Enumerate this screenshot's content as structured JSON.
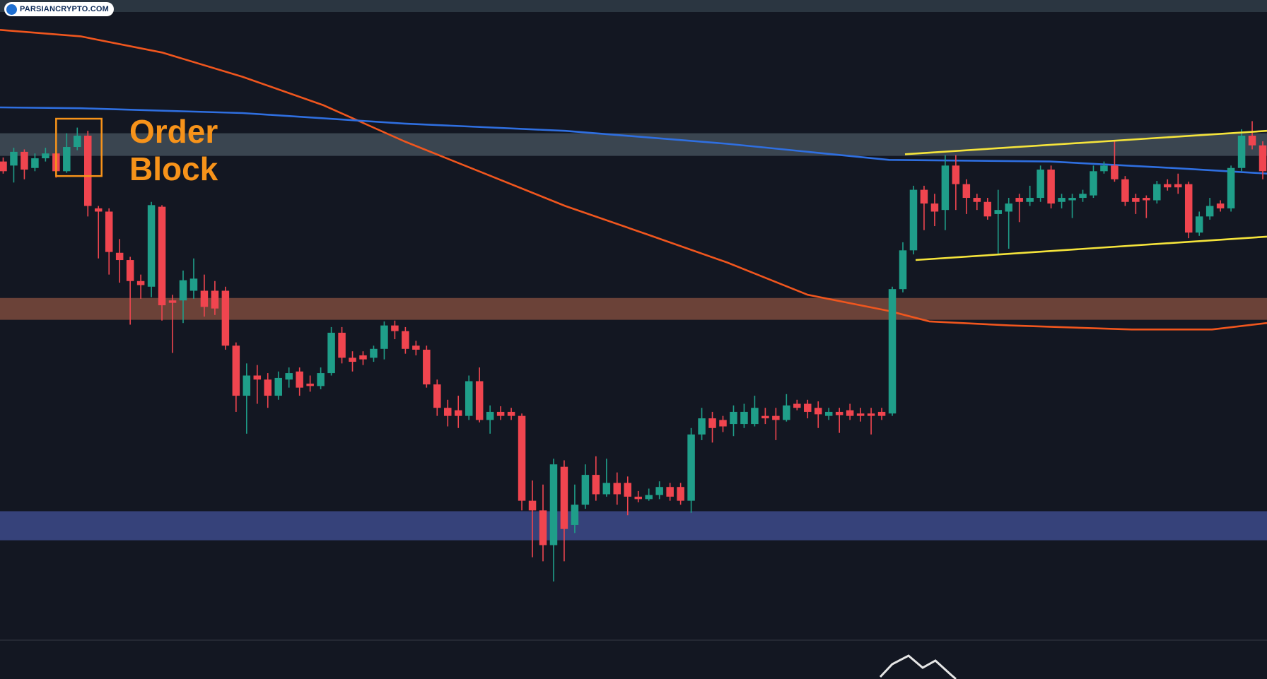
{
  "watermark": "PARSIANCRYPTO.COM",
  "chart_data": {
    "type": "candlestick",
    "annotation": "Order Block",
    "categories": [
      null,
      null,
      null,
      null,
      null,
      null,
      null,
      null,
      null,
      null,
      null,
      null,
      null,
      null,
      null,
      null,
      null,
      null,
      null,
      null,
      null,
      null,
      null,
      null,
      null,
      null,
      null,
      null,
      null,
      null,
      null,
      null,
      null,
      null,
      null,
      null,
      null,
      null,
      null,
      null,
      null,
      null,
      null,
      null,
      null,
      null,
      null,
      null,
      null,
      null,
      null,
      null,
      null,
      null,
      null,
      null,
      null,
      null,
      null,
      null,
      null,
      null,
      null,
      null,
      null,
      null,
      null,
      null,
      null,
      null,
      null,
      null,
      null,
      null,
      null,
      null,
      null,
      null,
      null,
      null,
      null,
      null,
      null,
      null,
      null,
      null,
      null,
      null,
      null,
      null,
      null,
      null,
      null,
      null,
      null,
      null,
      null,
      null,
      null,
      null,
      null,
      null,
      null,
      null,
      null,
      null,
      null,
      null,
      null,
      null,
      null,
      null,
      null,
      null,
      null,
      null,
      null,
      null,
      null,
      null
    ],
    "open": [
      600,
      595,
      612,
      592,
      604,
      610,
      588,
      618,
      632,
      542,
      538,
      487,
      478,
      452,
      445,
      544,
      428,
      428,
      440,
      440,
      440,
      440,
      372,
      310,
      335,
      330,
      310,
      330,
      340,
      325,
      322,
      338,
      388,
      357,
      360,
      357,
      368,
      397,
      390,
      372,
      367,
      324,
      295,
      292,
      285,
      328,
      280,
      290,
      290,
      285,
      180,
      168,
      125,
      222,
      150,
      175,
      212,
      188,
      202,
      202,
      185,
      182,
      187,
      197,
      197,
      180,
      262,
      282,
      280,
      275,
      275,
      275,
      285,
      285,
      280,
      300,
      300,
      295,
      285,
      290,
      292,
      288,
      288,
      290,
      288,
      442,
      490,
      565,
      548,
      540,
      595,
      572,
      555,
      550,
      535,
      538,
      555,
      550,
      555,
      590,
      550,
      552,
      555,
      558,
      588,
      595,
      578,
      555,
      555,
      552,
      572,
      572,
      572,
      512,
      532,
      548,
      542,
      592,
      632,
      620
    ],
    "high": [
      605,
      617,
      615,
      610,
      617,
      617,
      635,
      642,
      638,
      545,
      542,
      504,
      482,
      460,
      550,
      546,
      435,
      465,
      480,
      460,
      452,
      445,
      376,
      350,
      348,
      338,
      340,
      345,
      345,
      335,
      345,
      395,
      395,
      365,
      365,
      372,
      402,
      403,
      395,
      378,
      372,
      330,
      305,
      310,
      335,
      345,
      298,
      297,
      295,
      288,
      205,
      200,
      232,
      230,
      200,
      225,
      235,
      232,
      215,
      210,
      192,
      195,
      204,
      202,
      202,
      270,
      295,
      290,
      285,
      298,
      300,
      310,
      295,
      295,
      312,
      305,
      305,
      303,
      295,
      295,
      300,
      295,
      295,
      295,
      445,
      500,
      570,
      570,
      560,
      608,
      608,
      578,
      560,
      555,
      565,
      555,
      560,
      570,
      595,
      595,
      560,
      560,
      565,
      595,
      600,
      625,
      582,
      560,
      558,
      576,
      578,
      585,
      575,
      538,
      555,
      552,
      595,
      640,
      650,
      625
    ],
    "low": [
      585,
      574,
      578,
      588,
      600,
      580,
      586,
      614,
      532,
      480,
      460,
      450,
      398,
      430,
      432,
      403,
      363,
      400,
      430,
      408,
      410,
      367,
      290,
      263,
      300,
      295,
      305,
      320,
      310,
      315,
      318,
      335,
      350,
      340,
      348,
      352,
      355,
      380,
      362,
      360,
      320,
      285,
      272,
      270,
      280,
      277,
      263,
      280,
      280,
      168,
      110,
      105,
      80,
      105,
      140,
      170,
      180,
      185,
      175,
      162,
      178,
      180,
      182,
      180,
      175,
      165,
      255,
      252,
      265,
      260,
      270,
      272,
      275,
      255,
      278,
      292,
      282,
      270,
      280,
      264,
      280,
      278,
      262,
      280,
      285,
      438,
      485,
      515,
      520,
      515,
      540,
      535,
      540,
      528,
      485,
      492,
      525,
      545,
      550,
      542,
      542,
      530,
      550,
      555,
      585,
      575,
      545,
      535,
      530,
      548,
      564,
      560,
      505,
      508,
      528,
      538,
      538,
      588,
      615,
      578
    ],
    "close": [
      588,
      612,
      590,
      604,
      610,
      588,
      618,
      632,
      545,
      538,
      488,
      478,
      452,
      447,
      546,
      422,
      425,
      453,
      455,
      420,
      418,
      372,
      310,
      335,
      330,
      310,
      332,
      338,
      320,
      322,
      338,
      388,
      357,
      352,
      355,
      368,
      397,
      390,
      368,
      367,
      324,
      295,
      285,
      285,
      328,
      280,
      290,
      285,
      285,
      180,
      168,
      125,
      225,
      145,
      175,
      212,
      188,
      202,
      188,
      185,
      182,
      187,
      197,
      185,
      180,
      262,
      282,
      270,
      272,
      290,
      290,
      295,
      282,
      280,
      298,
      295,
      290,
      287,
      290,
      286,
      285,
      285,
      285,
      285,
      442,
      490,
      565,
      548,
      538,
      595,
      572,
      555,
      550,
      532,
      540,
      548,
      550,
      555,
      590,
      548,
      555,
      555,
      560,
      588,
      595,
      578,
      550,
      550,
      552,
      572,
      568,
      568,
      512,
      532,
      545,
      542,
      592,
      632,
      620,
      588
    ],
    "up_color": "#1f9e89",
    "down_color": "#f0454f",
    "xlim": [
      -0.3,
      119.4
    ],
    "ylim": [
      0,
      800
    ],
    "zones": [
      {
        "color": "#3a4550",
        "ylim": [
          607,
          635
        ]
      },
      {
        "color": "#6b4238",
        "ylim": [
          404,
          431
        ]
      },
      {
        "color": "#36427a",
        "ylim": [
          131,
          167
        ]
      }
    ],
    "lines": [
      {
        "color": "#f0561e",
        "x": [
          -0.3,
          7.3,
          15.0,
          22.6,
          30.2,
          37.9,
          45.5,
          53.1,
          60.8,
          68.4,
          76.0,
          83.7,
          87.5,
          95.1,
          106.6,
          114.2,
          119.4
        ],
        "values": [
          763,
          755,
          735,
          705,
          670,
          625,
          585,
          545,
          510,
          475,
          435,
          415,
          402,
          397,
          392,
          392,
          400
        ]
      },
      {
        "color": "#2f6fe0",
        "x": [
          -0.3,
          7.3,
          22.6,
          37.9,
          53.1,
          68.4,
          83.7,
          98.9,
          110.4,
          119.4
        ],
        "values": [
          667,
          666,
          660,
          647,
          638,
          622,
          602,
          600,
          592,
          585
        ]
      },
      {
        "color": "#f5e43b",
        "x": [
          85.2,
          119.4
        ],
        "values": [
          609,
          638
        ]
      },
      {
        "color": "#f5e43b",
        "x": [
          86.2,
          119.4
        ],
        "values": [
          478,
          507
        ]
      }
    ],
    "box": {
      "color": "#f7931a",
      "xlim": [
        5.0,
        9.3
      ],
      "ylim": [
        582,
        653
      ]
    }
  }
}
